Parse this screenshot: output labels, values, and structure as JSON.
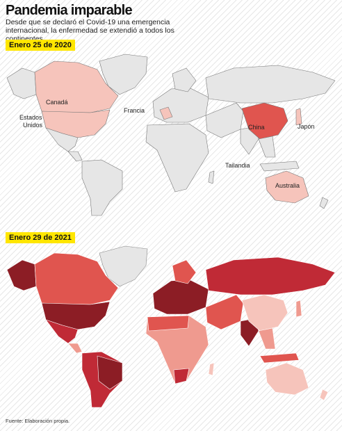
{
  "title": "Pandemia imparable",
  "subtitle": "Desde que se declaró el Covid-19 una emergencia internacional, la enfermedad se extendió a todos los continentes.",
  "maps": [
    {
      "date_label": "Enero 25 de 2020",
      "country_labels": [
        "Canadá",
        "Estados",
        "Unidos",
        "Francia",
        "China",
        "Japón",
        "Tailandia",
        "Australia"
      ]
    },
    {
      "date_label": "Enero 29 de 2021"
    }
  ],
  "colors": {
    "unaffected": "#e6e6e6",
    "level_1": "#f6c4bb",
    "level_2": "#ef9a8f",
    "level_3": "#e0554f",
    "level_4": "#c02a36",
    "level_5": "#8c1d25",
    "highlight": "#ffe600"
  },
  "source": "Fuente: Elaboración propia."
}
